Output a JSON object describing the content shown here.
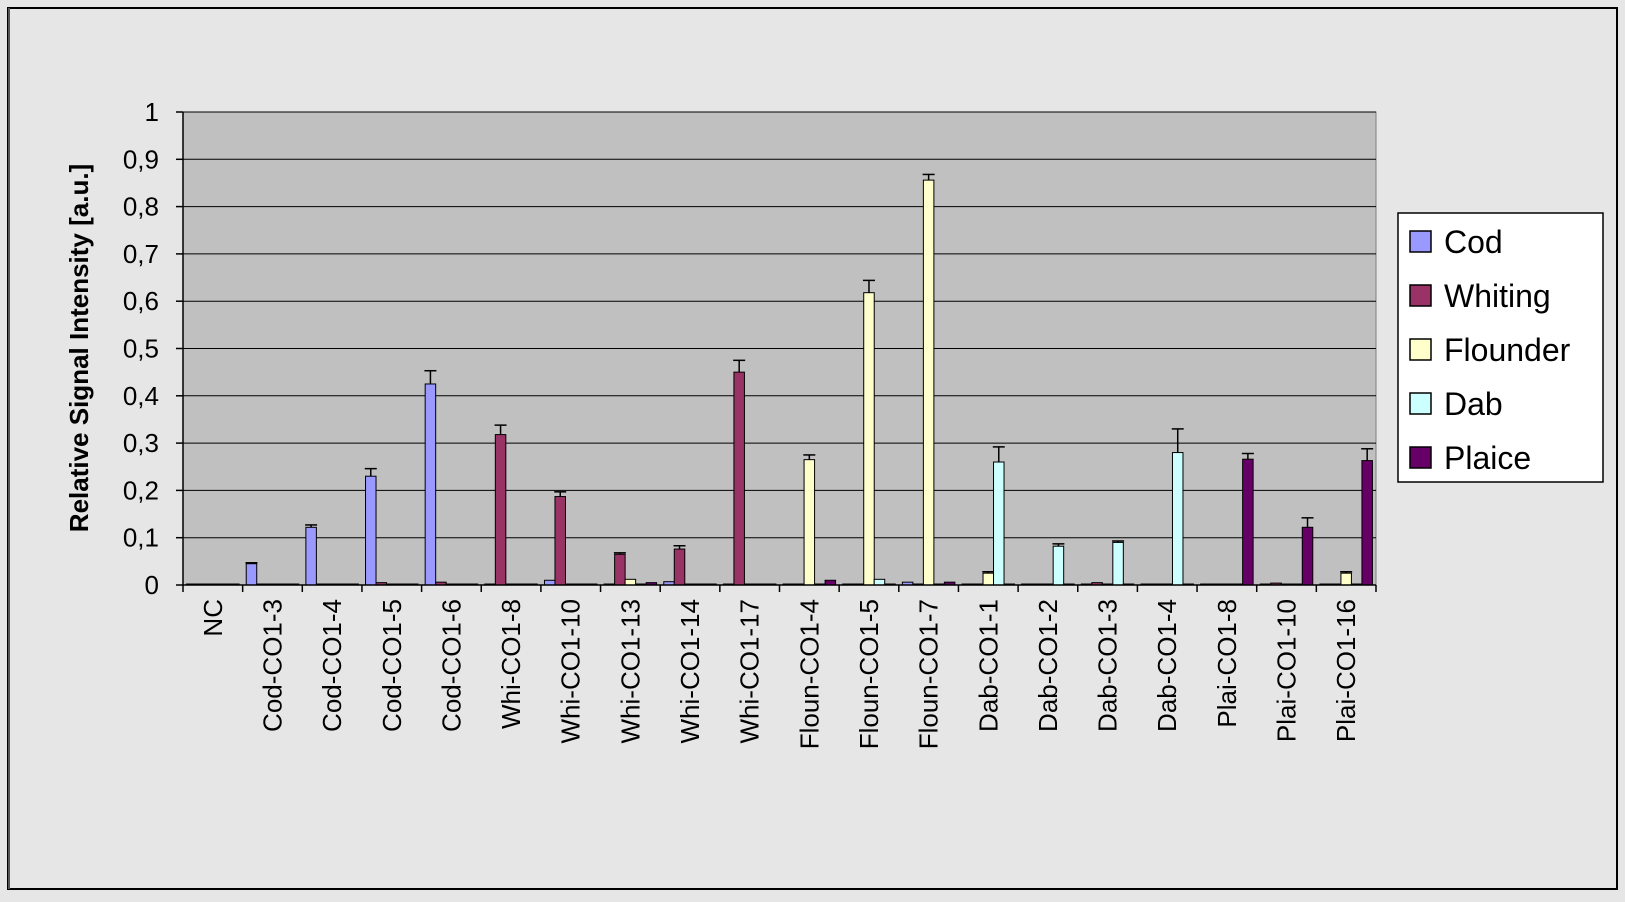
{
  "chart_data": {
    "type": "bar",
    "title": "",
    "xlabel": "",
    "ylabel": "Relative Signal Intensity [a.u.]",
    "ylim": [
      0,
      1
    ],
    "yticks": [
      0,
      0.1,
      0.2,
      0.3,
      0.4,
      0.5,
      0.6,
      0.7,
      0.8,
      0.9,
      1
    ],
    "ytick_labels": [
      "0",
      "0,1",
      "0,2",
      "0,3",
      "0,4",
      "0,5",
      "0,6",
      "0,7",
      "0,8",
      "0,9",
      "1"
    ],
    "grid": true,
    "legend_position": "right",
    "categories": [
      "NC",
      "Cod-CO1-3",
      "Cod-CO1-4",
      "Cod-CO1-5",
      "Cod-CO1-6",
      "Whi-CO1-8",
      "Whi-CO1-10",
      "Whi-CO1-13",
      "Whi-CO1-14",
      "Whi-CO1-17",
      "Floun-CO1-4",
      "Floun-CO1-5",
      "Floun-CO1-7",
      "Dab-CO1-1",
      "Dab-CO1-2",
      "Dab-CO1-3",
      "Dab-CO1-4",
      "Plai-CO1-8",
      "Plai-CO1-10",
      "Plai-CO1-16"
    ],
    "series": [
      {
        "name": "Cod",
        "color": "#9999ff",
        "values": [
          0.002,
          0.045,
          0.122,
          0.23,
          0.425,
          0.001,
          0.01,
          0.001,
          0.007,
          0.001,
          0.001,
          0.001,
          0.006,
          0.001,
          0.001,
          0.001,
          0.001,
          0.001,
          0.001,
          0.001
        ],
        "errors": [
          0.001,
          0.002,
          0.005,
          0.016,
          0.028,
          0.001,
          0.003,
          0.001,
          0.002,
          0.001,
          0.001,
          0.001,
          0.002,
          0.001,
          0.001,
          0.001,
          0.001,
          0.001,
          0.001,
          0.001
        ]
      },
      {
        "name": "Whiting",
        "color": "#993366",
        "values": [
          0.001,
          0.002,
          0.001,
          0.005,
          0.006,
          0.318,
          0.187,
          0.065,
          0.076,
          0.45,
          0.001,
          0.001,
          0.002,
          0.001,
          0.001,
          0.005,
          0.001,
          0.002,
          0.004,
          0.001
        ],
        "errors": [
          0.001,
          0.001,
          0.001,
          0.002,
          0.002,
          0.02,
          0.01,
          0.003,
          0.007,
          0.025,
          0.001,
          0.001,
          0.001,
          0.001,
          0.001,
          0.002,
          0.001,
          0.001,
          0.002,
          0.001
        ]
      },
      {
        "name": "Flounder",
        "color": "#ffffcc",
        "values": [
          0.001,
          0.001,
          0.001,
          0.002,
          0.001,
          0.001,
          0.001,
          0.012,
          0.001,
          0.001,
          0.265,
          0.618,
          0.856,
          0.025,
          0.001,
          0.001,
          0.001,
          0.001,
          0.002,
          0.025
        ],
        "errors": [
          0.001,
          0.001,
          0.001,
          0.001,
          0.001,
          0.001,
          0.001,
          0.002,
          0.001,
          0.001,
          0.01,
          0.026,
          0.012,
          0.003,
          0.001,
          0.001,
          0.001,
          0.001,
          0.001,
          0.003
        ]
      },
      {
        "name": "Dab",
        "color": "#ccffff",
        "values": [
          0.001,
          0.001,
          0.001,
          0.001,
          0.002,
          0.001,
          0.001,
          0.001,
          0.001,
          0.001,
          0.002,
          0.012,
          0.002,
          0.26,
          0.082,
          0.09,
          0.28,
          0.001,
          0.001,
          0.001
        ],
        "errors": [
          0.001,
          0.001,
          0.001,
          0.001,
          0.001,
          0.001,
          0.001,
          0.001,
          0.001,
          0.001,
          0.001,
          0.003,
          0.001,
          0.032,
          0.005,
          0.003,
          0.05,
          0.001,
          0.001,
          0.001
        ]
      },
      {
        "name": "Plaice",
        "color": "#660066",
        "values": [
          0.001,
          0.001,
          0.001,
          0.001,
          0.001,
          0.001,
          0.001,
          0.005,
          0.001,
          0.001,
          0.01,
          0.002,
          0.006,
          0.002,
          0.001,
          0.001,
          0.001,
          0.266,
          0.122,
          0.263
        ],
        "errors": [
          0.001,
          0.001,
          0.001,
          0.001,
          0.001,
          0.001,
          0.001,
          0.002,
          0.001,
          0.001,
          0.002,
          0.001,
          0.002,
          0.001,
          0.001,
          0.001,
          0.001,
          0.012,
          0.02,
          0.025
        ]
      }
    ]
  },
  "colors": {
    "background": "#e6e6e6",
    "plot_area": "#c0c0c0",
    "grid": "#000000",
    "legend_background": "#ffffff"
  }
}
